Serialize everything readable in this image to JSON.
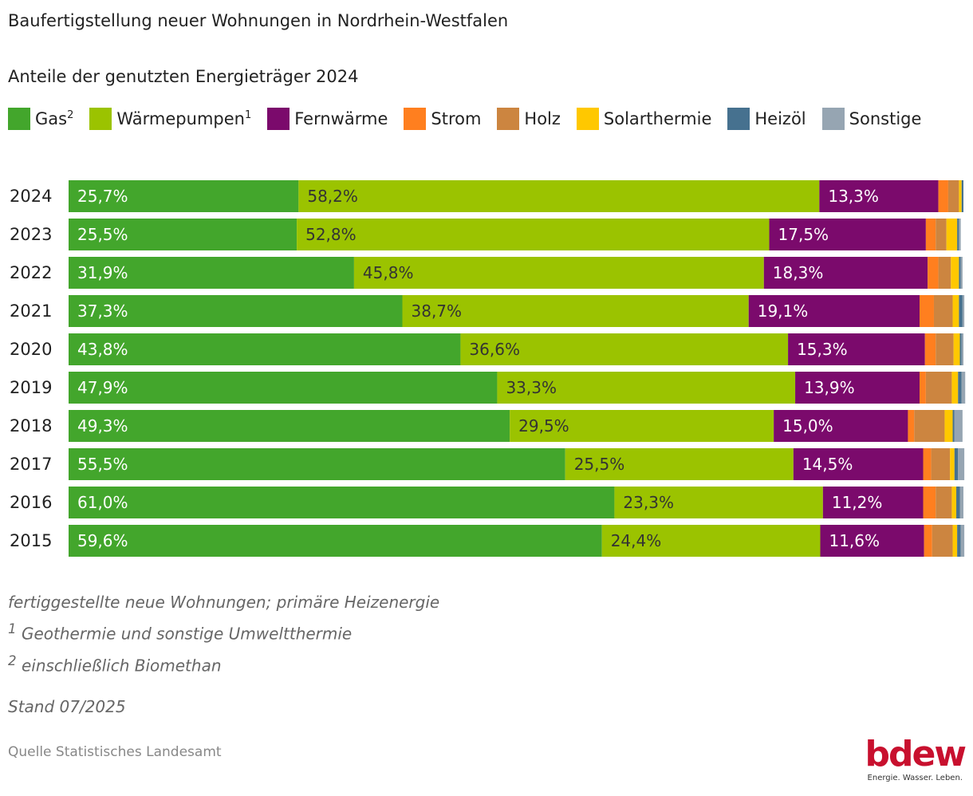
{
  "chart_data": {
    "type": "bar",
    "orientation": "horizontal",
    "stacked": true,
    "title": "Baufertigstellung neuer Wohnungen in Nordrhein-Westfalen",
    "subtitle": "Anteile der genutzten Energieträger 2024",
    "xlabel": "",
    "ylabel": "",
    "xlim": [
      0,
      100
    ],
    "unit": "%",
    "grid": false,
    "legend_position": "top",
    "categories": [
      "2024",
      "2023",
      "2022",
      "2021",
      "2020",
      "2019",
      "2018",
      "2017",
      "2016",
      "2015"
    ],
    "series": [
      {
        "name": "Gas",
        "sup": "2",
        "color": "#43a62c",
        "label_color": "#ffffff",
        "labeled": true,
        "values": [
          25.7,
          25.5,
          31.9,
          37.3,
          43.8,
          47.9,
          49.3,
          55.5,
          61.0,
          59.6
        ],
        "labels": [
          "25,7%",
          "25,5%",
          "31,9%",
          "37,3%",
          "43,8%",
          "47,9%",
          "49,3%",
          "55,5%",
          "61,0%",
          "59,6%"
        ]
      },
      {
        "name": "Wärmepumpen",
        "sup": "1",
        "color": "#9bc300",
        "label_color": "#333333",
        "labeled": true,
        "values": [
          58.2,
          52.8,
          45.8,
          38.7,
          36.6,
          33.3,
          29.5,
          25.5,
          23.3,
          24.4
        ],
        "labels": [
          "58,2%",
          "52,8%",
          "45,8%",
          "38,7%",
          "36,6%",
          "33,3%",
          "29,5%",
          "25,5%",
          "23,3%",
          "24,4%"
        ]
      },
      {
        "name": "Fernwärme",
        "sup": "",
        "color": "#7b0a6c",
        "label_color": "#ffffff",
        "labeled": true,
        "values": [
          13.3,
          17.5,
          18.3,
          19.1,
          15.3,
          13.9,
          15.0,
          14.5,
          11.2,
          11.6
        ],
        "labels": [
          "13,3%",
          "17,5%",
          "18,3%",
          "19,1%",
          "15,3%",
          "13,9%",
          "15,0%",
          "14,5%",
          "11,2%",
          "11,6%"
        ]
      },
      {
        "name": "Strom",
        "sup": "",
        "color": "#ff7f1f",
        "labeled": false,
        "values": [
          1.1,
          1.1,
          1.2,
          1.6,
          1.2,
          0.7,
          0.7,
          0.9,
          1.4,
          0.9
        ]
      },
      {
        "name": "Holz",
        "sup": "",
        "color": "#cc8540",
        "labeled": false,
        "values": [
          1.2,
          1.2,
          1.4,
          2.1,
          2.0,
          2.9,
          3.4,
          2.1,
          1.8,
          2.3
        ]
      },
      {
        "name": "Solarthermie",
        "sup": "",
        "color": "#ffc800",
        "labeled": false,
        "values": [
          0.3,
          1.2,
          0.9,
          0.7,
          0.7,
          0.7,
          0.9,
          0.5,
          0.5,
          0.5
        ]
      },
      {
        "name": "Heizöl",
        "sup": "",
        "color": "#46718f",
        "labeled": false,
        "values": [
          0.2,
          0.2,
          0.2,
          0.4,
          0.2,
          0.4,
          0.2,
          0.4,
          0.4,
          0.4
        ]
      },
      {
        "name": "Sonstige",
        "sup": "",
        "color": "#96a5b2",
        "labeled": false,
        "values": [
          0.0,
          0.2,
          0.2,
          0.2,
          0.2,
          0.4,
          0.9,
          0.7,
          0.4,
          0.4
        ]
      }
    ]
  },
  "footnotes": {
    "note": "fertiggestellte neue Wohnungen; primäre Heizenergie",
    "fn1_mark": "1",
    "fn1": " Geothermie und sonstige Umweltthermie",
    "fn2_mark": "2",
    "fn2": " einschließlich Biomethan"
  },
  "stand": "Stand 07/2025",
  "source": "Quelle Statistisches Landesamt",
  "logo": {
    "wordmark": "bdew",
    "tagline": "Energie. Wasser. Leben.",
    "color": "#c8102e"
  }
}
